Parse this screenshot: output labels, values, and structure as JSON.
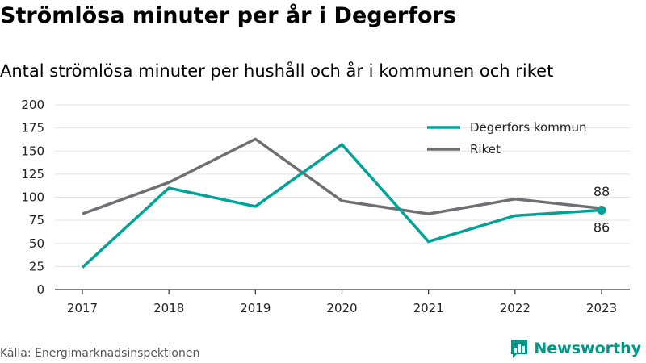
{
  "title": "Strömlösa minuter per år i Degerfors",
  "subtitle": "Antal strömlösa minuter per hushåll och år i kommunen och riket",
  "source": "Källa: Energimarknadsinspektionen",
  "brand": {
    "name": "Newsworthy",
    "icon": "newsworthy-logo-icon",
    "color": "#009688"
  },
  "chart_data": {
    "type": "line",
    "categories": [
      "2017",
      "2018",
      "2019",
      "2020",
      "2021",
      "2022",
      "2023"
    ],
    "series": [
      {
        "name": "Degerfors kommun",
        "values": [
          24,
          110,
          90,
          157,
          52,
          80,
          86
        ],
        "color": "#00A397",
        "end_label": "86"
      },
      {
        "name": "Riket",
        "values": [
          82,
          116,
          163,
          96,
          82,
          98,
          88
        ],
        "color": "#6E6E73",
        "end_label": "88"
      }
    ],
    "ylim": [
      0,
      200
    ],
    "yticks": [
      0,
      25,
      50,
      75,
      100,
      125,
      150,
      175,
      200
    ],
    "grid": true,
    "legend_position": "top-right"
  }
}
